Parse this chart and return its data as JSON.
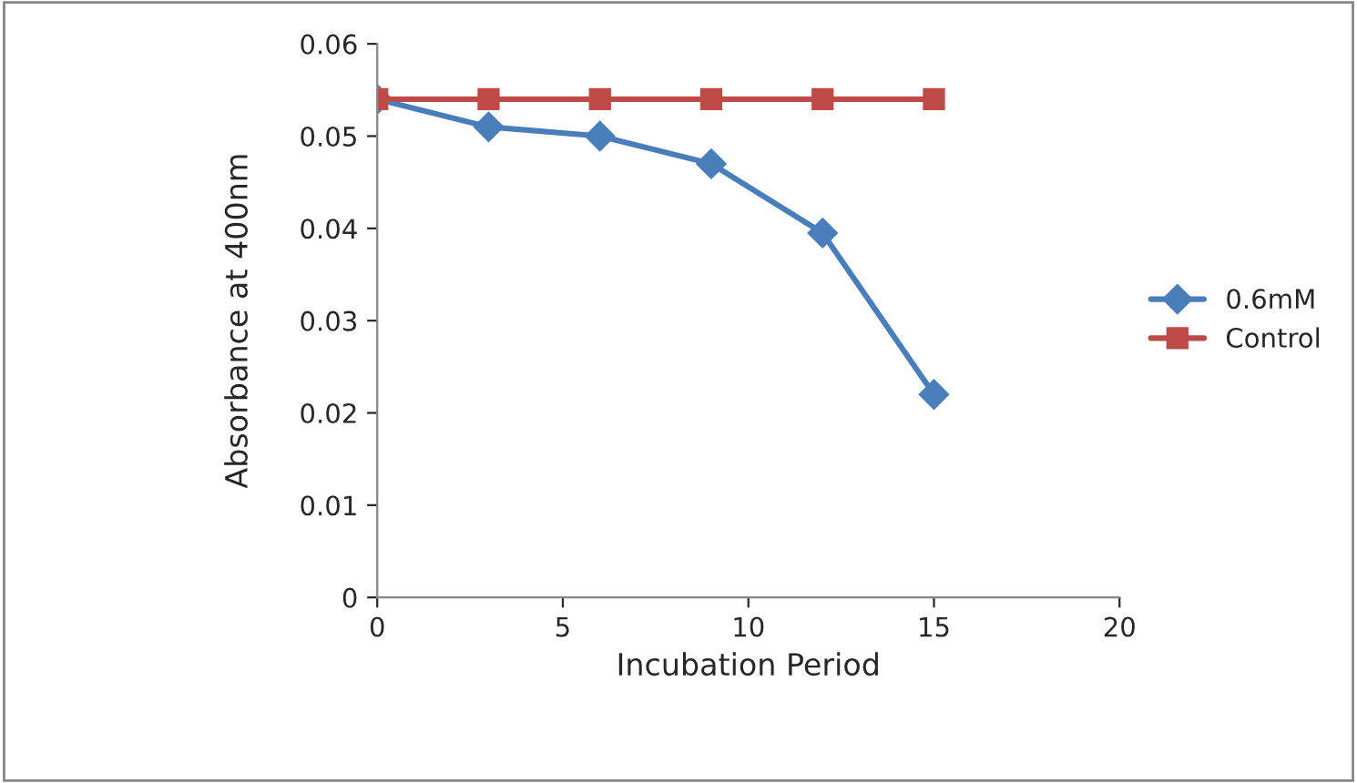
{
  "chart_data": {
    "type": "line",
    "xlabel": "Incubation Period",
    "ylabel": "Absorbance at 400nm",
    "x": [
      0,
      3,
      6,
      9,
      12,
      15
    ],
    "series": [
      {
        "name": "0.6mM",
        "color": "#4a7ebb",
        "marker": "diamond",
        "values": [
          0.054,
          0.051,
          0.05,
          0.047,
          0.0395,
          0.022
        ]
      },
      {
        "name": "Control",
        "color": "#be4b48",
        "marker": "square",
        "values": [
          0.054,
          0.054,
          0.054,
          0.054,
          0.054,
          0.054
        ]
      }
    ],
    "xlim": [
      0,
      20
    ],
    "xticks": [
      0,
      5,
      10,
      15,
      20
    ],
    "ylim": [
      0,
      0.06
    ],
    "yticks": [
      {
        "value": 0,
        "label": "0"
      },
      0.01,
      0.02,
      0.03,
      0.04,
      0.05,
      0.06
    ],
    "grid": false,
    "legend": "right",
    "line_style": "solid"
  }
}
